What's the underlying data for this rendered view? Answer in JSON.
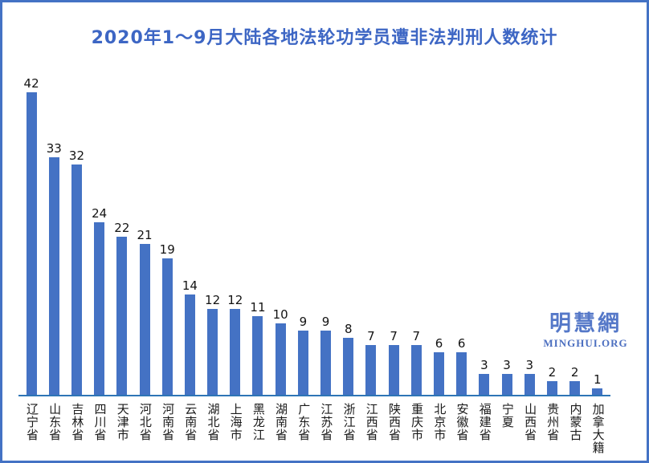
{
  "page_title": "2020年1～9月大陆各地法轮功学员遭非法判刑人数统计",
  "watermark": {
    "line1": "明慧網",
    "line2": "MINGHUI.ORG"
  },
  "colors": {
    "bar": "#4472C4",
    "title": "#3D66C4",
    "axis": "#2E75B6",
    "border": "#4472C4",
    "watermark": "#5578C8"
  },
  "chart_data": {
    "type": "bar",
    "title": "2020年1～9月大陆各地法轮功学员遭非法判刑人数统计",
    "categories": [
      "辽宁省",
      "山东省",
      "吉林省",
      "四川省",
      "天津市",
      "河北省",
      "河南省",
      "云南省",
      "湖北省",
      "上海市",
      "黑龙江",
      "湖南省",
      "广东省",
      "江苏省",
      "浙江省",
      "江西省",
      "陕西省",
      "重庆市",
      "北京市",
      "安徽省",
      "福建省",
      "宁夏",
      "山西省",
      "贵州省",
      "内蒙古",
      "加拿大籍"
    ],
    "values": [
      42,
      33,
      32,
      24,
      22,
      21,
      19,
      14,
      12,
      12,
      11,
      10,
      9,
      9,
      8,
      7,
      7,
      7,
      6,
      6,
      3,
      3,
      3,
      2,
      2,
      1
    ],
    "xlabel": "",
    "ylabel": "",
    "ylim": [
      0,
      44
    ],
    "grid": false,
    "legend": null,
    "value_labels_shown": true,
    "bar_color": "#4472C4"
  }
}
